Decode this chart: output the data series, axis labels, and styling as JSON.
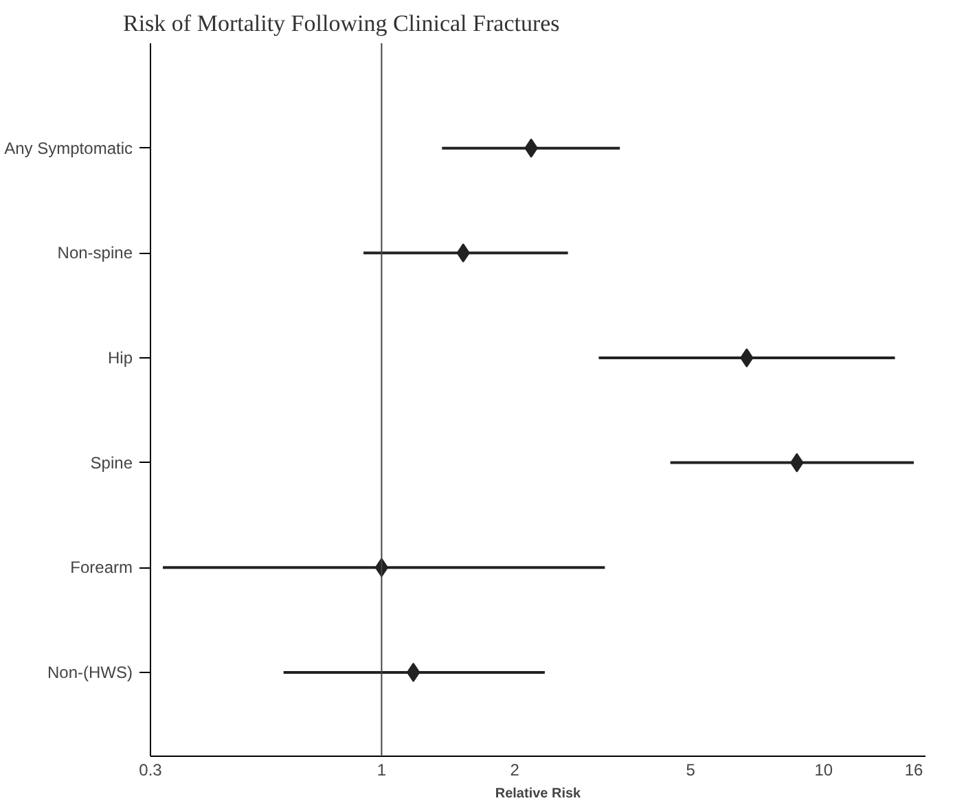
{
  "chart_data": {
    "type": "scatter",
    "orientation": "horizontal",
    "title": "Risk of Mortality Following Clinical Fractures",
    "xlabel": "Relative Risk",
    "categories": [
      "Any Symptomatic",
      "Non-spine",
      "Hip",
      "Spine",
      "Forearm",
      "Non-(HWS)"
    ],
    "values": [
      2.18,
      1.53,
      6.7,
      8.7,
      1.0,
      1.18
    ],
    "errors": [
      [
        1.37,
        3.46
      ],
      [
        0.91,
        2.64
      ],
      [
        3.1,
        14.5
      ],
      [
        4.5,
        16.0
      ],
      [
        0.32,
        3.2
      ],
      [
        0.6,
        2.34
      ]
    ],
    "color": "#222222",
    "marker": "diamond",
    "log": "x",
    "grid": false,
    "xlim": [
      0.3,
      17
    ],
    "xticks": [
      0.3,
      1,
      2,
      5,
      10,
      16
    ],
    "ref_lines": [
      {
        "axis": "x",
        "value": 1,
        "label": null
      }
    ]
  }
}
